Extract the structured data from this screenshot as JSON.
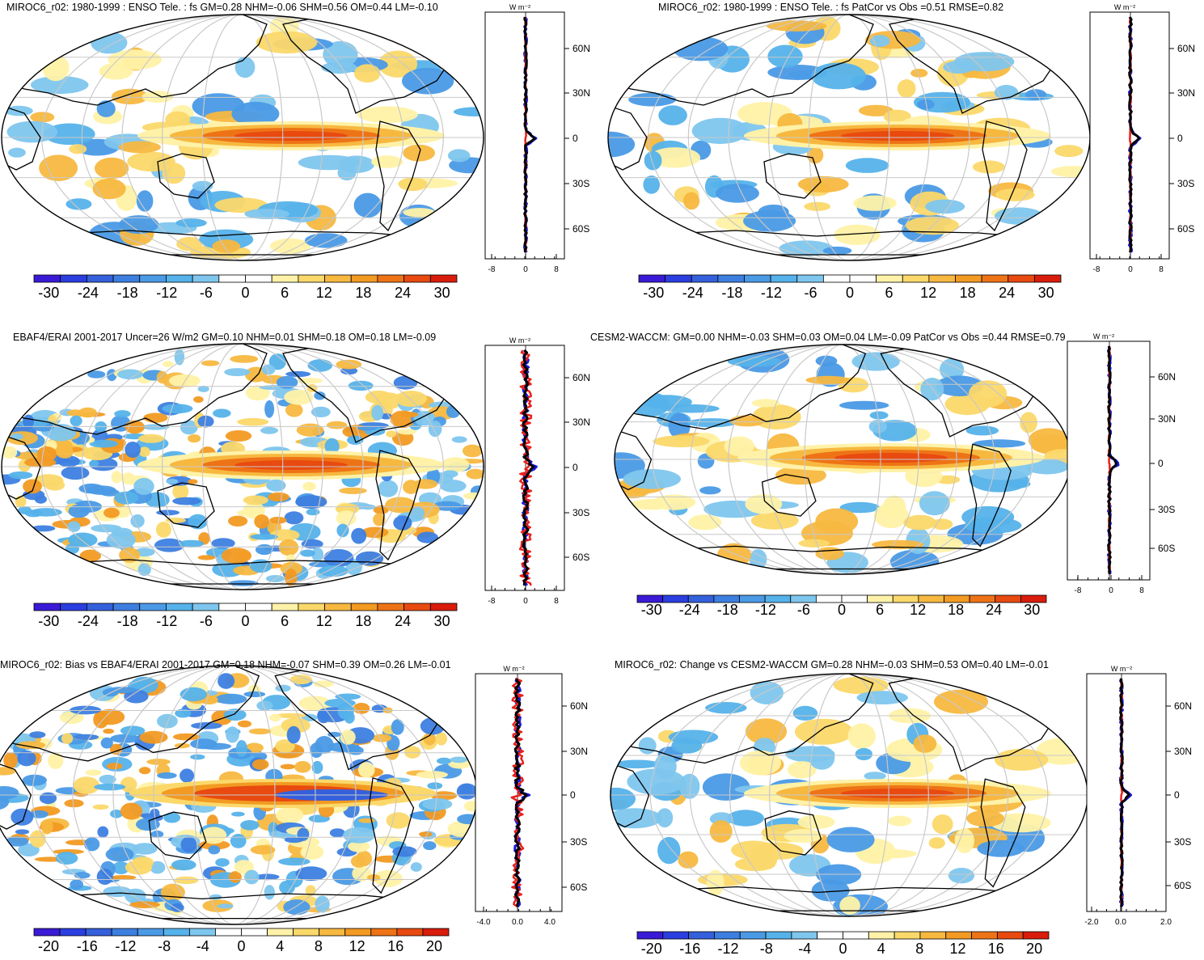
{
  "panels": [
    {
      "title": "MIROC6_r02: 1980-1999 : ENSO Tele. : fs GM=0.28 NHM=-0.06 SHM=0.56 OM=0.44 LM=-0.10",
      "colorbar": {
        "ticks": [
          "-30",
          "-24",
          "-18",
          "-12",
          "-6",
          "0",
          "6",
          "12",
          "18",
          "24",
          "30"
        ]
      },
      "profile": {
        "xticks": [
          "-8",
          "0",
          "8"
        ],
        "yticks": [
          "60N",
          "30N",
          "0",
          "30S",
          "60S"
        ],
        "units": "W m⁻²"
      }
    },
    {
      "title": "MIROC6_r02: 1980-1999 : ENSO Tele. : fs PatCor vs Obs =0.51 RMSE=0.82",
      "colorbar": {
        "ticks": [
          "-30",
          "-24",
          "-18",
          "-12",
          "-6",
          "0",
          "6",
          "12",
          "18",
          "24",
          "30"
        ]
      },
      "profile": {
        "xticks": [
          "-8",
          "0",
          "8"
        ],
        "yticks": [
          "60N",
          "30N",
          "0",
          "30S",
          "60S"
        ],
        "units": "W m⁻²"
      }
    },
    {
      "title": "EBAF4/ERAI 2001-2017 Uncer=26 W/m2 GM=0.10 NHM=0.01 SHM=0.18 OM=0.18 LM=-0.09",
      "colorbar": {
        "ticks": [
          "-30",
          "-24",
          "-18",
          "-12",
          "-6",
          "0",
          "6",
          "12",
          "18",
          "24",
          "30"
        ]
      },
      "profile": {
        "xticks": [
          "-8",
          "0",
          "8"
        ],
        "yticks": [
          "60N",
          "30N",
          "0",
          "30S",
          "60S"
        ],
        "units": "W m⁻²"
      }
    },
    {
      "title": "CESM2-WACCM: GM=0.00 NHM=-0.03 SHM=0.03 OM=0.04 LM=-0.09 PatCor vs Obs =0.44 RMSE=0.79",
      "colorbar": {
        "ticks": [
          "-30",
          "-24",
          "-18",
          "-12",
          "-6",
          "0",
          "6",
          "12",
          "18",
          "24",
          "30"
        ]
      },
      "profile": {
        "xticks": [
          "-8",
          "0",
          "8"
        ],
        "yticks": [
          "60N",
          "30N",
          "0",
          "30S",
          "60S"
        ],
        "units": "W m⁻²"
      }
    },
    {
      "title": "MIROC6_r02: Bias vs EBAF4/ERAI 2001-2017 GM=0.18 NHM=-0.07 SHM=0.39 OM=0.26 LM=-0.01",
      "colorbar": {
        "ticks": [
          "-20",
          "-16",
          "-12",
          "-8",
          "-4",
          "0",
          "4",
          "8",
          "12",
          "16",
          "20"
        ]
      },
      "profile": {
        "xticks": [
          "-4.0",
          "0.0",
          "4.0"
        ],
        "yticks": [
          "60N",
          "30N",
          "0",
          "30S",
          "60S"
        ],
        "units": "W m⁻²"
      }
    },
    {
      "title": "MIROC6_r02: Change vs CESM2-WACCM GM=0.28 NHM=-0.03 SHM=0.53 OM=0.40 LM=-0.01",
      "colorbar": {
        "ticks": [
          "-20",
          "-16",
          "-12",
          "-8",
          "-4",
          "0",
          "4",
          "8",
          "12",
          "16",
          "20"
        ]
      },
      "profile": {
        "xticks": [
          "-2.0",
          "0.0",
          "2.0"
        ],
        "yticks": [
          "60N",
          "30N",
          "0",
          "30S",
          "60S"
        ],
        "units": "W m⁻²"
      }
    }
  ],
  "palette": [
    "#3a1ad6",
    "#2b3ee0",
    "#3560dc",
    "#3d7fe0",
    "#4a9ae6",
    "#55b2ea",
    "#7ec6ee",
    "#ffffff",
    "#ffffff",
    "#fff2a8",
    "#fbd86a",
    "#f7b840",
    "#f29a22",
    "#ee7316",
    "#e84a10",
    "#d91c0c"
  ],
  "line_colors": {
    "model": "#000000",
    "ocean": "#1a1adc",
    "land": "#e8201c"
  }
}
